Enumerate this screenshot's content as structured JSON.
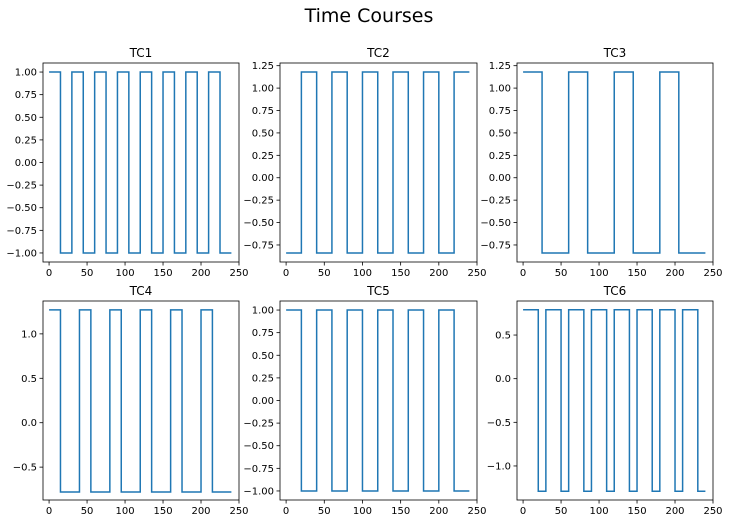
{
  "figure": {
    "suptitle": "Time Courses"
  },
  "style": {
    "line_color": "#1f77b4",
    "axes_color": "#000000",
    "background": "#ffffff"
  },
  "chart_data": [
    {
      "type": "line",
      "title": "TC1",
      "grid": false,
      "xlim": [
        -8,
        250
      ],
      "ylim": [
        -1.1,
        1.1
      ],
      "x_ticks": [
        0,
        50,
        100,
        150,
        200,
        250
      ],
      "y_ticks": [
        1.0,
        0.75,
        0.5,
        0.25,
        0.0,
        -0.25,
        -0.5,
        -0.75,
        -1.0
      ],
      "x_tick_labels": [
        "0",
        "50",
        "100",
        "150",
        "200",
        "250"
      ],
      "y_tick_labels": [
        "1.00",
        "0.75",
        "0.50",
        "0.25",
        "0.00",
        "−0.25",
        "−0.50",
        "−0.75",
        "−1.00"
      ],
      "series": [
        {
          "x": [
            0,
            15,
            15,
            30,
            30,
            45,
            45,
            60,
            60,
            75,
            75,
            90,
            90,
            105,
            105,
            120,
            120,
            135,
            135,
            150,
            150,
            165,
            165,
            180,
            180,
            195,
            195,
            210,
            210,
            225,
            225,
            240
          ],
          "y": [
            1,
            1,
            -1,
            -1,
            1,
            1,
            -1,
            -1,
            1,
            1,
            -1,
            -1,
            1,
            1,
            -1,
            -1,
            1,
            1,
            -1,
            -1,
            1,
            1,
            -1,
            -1,
            1,
            1,
            -1,
            -1,
            1,
            1,
            -1,
            -1
          ]
        }
      ]
    },
    {
      "type": "line",
      "title": "TC2",
      "grid": false,
      "xlim": [
        -8,
        250
      ],
      "ylim": [
        -0.94,
        1.28
      ],
      "x_ticks": [
        0,
        50,
        100,
        150,
        200,
        250
      ],
      "y_ticks": [
        1.25,
        1.0,
        0.75,
        0.5,
        0.25,
        0.0,
        -0.25,
        -0.5,
        -0.75
      ],
      "x_tick_labels": [
        "0",
        "50",
        "100",
        "150",
        "200",
        "250"
      ],
      "y_tick_labels": [
        "1.25",
        "1.00",
        "0.75",
        "0.50",
        "0.25",
        "0.00",
        "−0.25",
        "−0.50",
        "−0.75"
      ],
      "series": [
        {
          "x": [
            0,
            20,
            20,
            40,
            40,
            60,
            60,
            80,
            80,
            100,
            100,
            120,
            120,
            140,
            140,
            160,
            160,
            180,
            180,
            200,
            200,
            220,
            220,
            240
          ],
          "y": [
            -0.84,
            -0.84,
            1.18,
            1.18,
            -0.84,
            -0.84,
            1.18,
            1.18,
            -0.84,
            -0.84,
            1.18,
            1.18,
            -0.84,
            -0.84,
            1.18,
            1.18,
            -0.84,
            -0.84,
            1.18,
            1.18,
            -0.84,
            -0.84,
            1.18,
            1.18
          ]
        }
      ]
    },
    {
      "type": "line",
      "title": "TC3",
      "grid": false,
      "xlim": [
        -8,
        250
      ],
      "ylim": [
        -0.94,
        1.28
      ],
      "x_ticks": [
        0,
        50,
        100,
        150,
        200,
        250
      ],
      "y_ticks": [
        1.25,
        1.0,
        0.75,
        0.5,
        0.25,
        0.0,
        -0.25,
        -0.5,
        -0.75
      ],
      "x_tick_labels": [
        "0",
        "50",
        "100",
        "150",
        "200",
        "250"
      ],
      "y_tick_labels": [
        "1.25",
        "1.00",
        "0.75",
        "0.50",
        "0.25",
        "0.00",
        "−0.25",
        "−0.50",
        "−0.75"
      ],
      "series": [
        {
          "x": [
            0,
            25,
            25,
            60,
            60,
            85,
            85,
            120,
            120,
            145,
            145,
            180,
            180,
            205,
            205,
            240
          ],
          "y": [
            1.18,
            1.18,
            -0.84,
            -0.84,
            1.18,
            1.18,
            -0.84,
            -0.84,
            1.18,
            1.18,
            -0.84,
            -0.84,
            1.18,
            1.18,
            -0.84,
            -0.84
          ]
        }
      ]
    },
    {
      "type": "line",
      "title": "TC4",
      "grid": false,
      "xlim": [
        -8,
        250
      ],
      "ylim": [
        -0.87,
        1.37
      ],
      "x_ticks": [
        0,
        50,
        100,
        150,
        200,
        250
      ],
      "y_ticks": [
        1.0,
        0.5,
        0.0,
        -0.5
      ],
      "x_tick_labels": [
        "0",
        "50",
        "100",
        "150",
        "200",
        "250"
      ],
      "y_tick_labels": [
        "1.0",
        "0.5",
        "0.0",
        "−0.5"
      ],
      "series": [
        {
          "x": [
            0,
            15,
            15,
            40,
            40,
            55,
            55,
            80,
            80,
            95,
            95,
            120,
            120,
            135,
            135,
            160,
            160,
            175,
            175,
            200,
            200,
            215,
            215,
            240
          ],
          "y": [
            1.27,
            1.27,
            -0.78,
            -0.78,
            1.27,
            1.27,
            -0.78,
            -0.78,
            1.27,
            1.27,
            -0.78,
            -0.78,
            1.27,
            1.27,
            -0.78,
            -0.78,
            1.27,
            1.27,
            -0.78,
            -0.78,
            1.27,
            1.27,
            -0.78,
            -0.78
          ]
        }
      ]
    },
    {
      "type": "line",
      "title": "TC5",
      "grid": false,
      "xlim": [
        -8,
        250
      ],
      "ylim": [
        -1.1,
        1.1
      ],
      "x_ticks": [
        0,
        50,
        100,
        150,
        200,
        250
      ],
      "y_ticks": [
        1.0,
        0.75,
        0.5,
        0.25,
        0.0,
        -0.25,
        -0.5,
        -0.75,
        -1.0
      ],
      "x_tick_labels": [
        "0",
        "50",
        "100",
        "150",
        "200",
        "250"
      ],
      "y_tick_labels": [
        "1.00",
        "0.75",
        "0.50",
        "0.25",
        "0.00",
        "−0.25",
        "−0.50",
        "−0.75",
        "−1.00"
      ],
      "series": [
        {
          "x": [
            0,
            10,
            10,
            20,
            20,
            40,
            40,
            50,
            50,
            60,
            60,
            80,
            80,
            90,
            90,
            100,
            100,
            120,
            120,
            130,
            130,
            140,
            140,
            160,
            160,
            170,
            170,
            180,
            180,
            200,
            200,
            210,
            210,
            220,
            220,
            240
          ],
          "y": [
            1,
            1,
            1,
            1,
            -1,
            -1,
            1,
            1,
            1,
            1,
            -1,
            -1,
            1,
            1,
            1,
            1,
            -1,
            -1,
            1,
            1,
            1,
            1,
            -1,
            -1,
            1,
            1,
            1,
            1,
            -1,
            -1,
            1,
            1,
            1,
            1,
            -1,
            -1
          ]
        }
      ]
    },
    {
      "type": "line",
      "title": "TC6",
      "grid": false,
      "xlim": [
        -8,
        250
      ],
      "ylim": [
        -1.39,
        0.89
      ],
      "x_ticks": [
        0,
        50,
        100,
        150,
        200,
        250
      ],
      "y_ticks": [
        0.5,
        0.0,
        -0.5,
        -1.0
      ],
      "x_tick_labels": [
        "0",
        "50",
        "100",
        "150",
        "200",
        "250"
      ],
      "y_tick_labels": [
        "0.5",
        "0.0",
        "−0.5",
        "−1.0"
      ],
      "series": [
        {
          "x": [
            0,
            20,
            20,
            30,
            30,
            50,
            50,
            60,
            60,
            80,
            80,
            90,
            90,
            110,
            110,
            120,
            120,
            140,
            140,
            150,
            150,
            170,
            170,
            180,
            180,
            200,
            200,
            210,
            210,
            230,
            230,
            240
          ],
          "y": [
            0.79,
            0.79,
            -1.29,
            -1.29,
            0.79,
            0.79,
            -1.29,
            -1.29,
            0.79,
            0.79,
            -1.29,
            -1.29,
            0.79,
            0.79,
            -1.29,
            -1.29,
            0.79,
            0.79,
            -1.29,
            -1.29,
            0.79,
            0.79,
            -1.29,
            -1.29,
            0.79,
            0.79,
            -1.29,
            -1.29,
            0.79,
            0.79,
            -1.29,
            -1.29
          ]
        }
      ]
    }
  ]
}
